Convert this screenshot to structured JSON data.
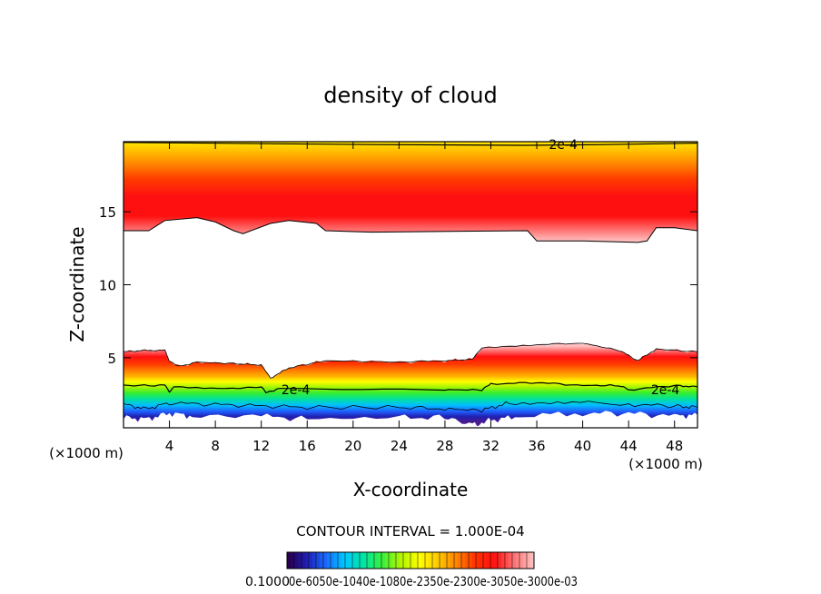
{
  "chart_data": {
    "type": "heatmap",
    "title": "density of cloud",
    "xlabel": "X-coordinate",
    "ylabel": "Z-coordinate",
    "x_unit_label": "(×1000 m)",
    "xlim": [
      0,
      50
    ],
    "ylim": [
      0.2,
      19.8
    ],
    "x_ticks": [
      "4",
      "8",
      "12",
      "16",
      "20",
      "24",
      "28",
      "32",
      "36",
      "40",
      "44",
      "48"
    ],
    "y_ticks": [
      "5",
      "10",
      "15"
    ],
    "contour_labels": [
      {
        "text": "2e-4",
        "x": 38.3,
        "z": 19.6
      },
      {
        "text": "2e-4",
        "x": 15.0,
        "z": 2.8
      },
      {
        "text": "2e-4",
        "x": 47.2,
        "z": 2.8
      }
    ],
    "upper_layer": {
      "base_z": [
        [
          0,
          13.7
        ],
        [
          2.2,
          13.7
        ],
        [
          3.6,
          14.4
        ],
        [
          6.4,
          14.6
        ],
        [
          8.0,
          14.3
        ],
        [
          9.6,
          13.7
        ],
        [
          10.4,
          13.5
        ],
        [
          12.8,
          14.2
        ],
        [
          14.4,
          14.4
        ],
        [
          16.8,
          14.2
        ],
        [
          17.6,
          13.7
        ],
        [
          21.6,
          13.6
        ],
        [
          35.2,
          13.7
        ],
        [
          36.0,
          13.0
        ],
        [
          40.0,
          13.0
        ],
        [
          44.8,
          12.9
        ],
        [
          45.6,
          13.0
        ],
        [
          46.4,
          13.9
        ],
        [
          48.0,
          13.9
        ],
        [
          50,
          13.7
        ]
      ],
      "top_z": 19.8,
      "peak_z": 16.0
    },
    "lower_layer": {
      "top_z": [
        [
          0,
          5.4
        ],
        [
          1.6,
          5.5
        ],
        [
          3.6,
          5.5
        ],
        [
          4.0,
          4.8
        ],
        [
          4.8,
          4.4
        ],
        [
          6.4,
          4.7
        ],
        [
          9.6,
          4.6
        ],
        [
          12.0,
          4.5
        ],
        [
          12.8,
          3.6
        ],
        [
          14.4,
          4.3
        ],
        [
          17.6,
          4.8
        ],
        [
          24.0,
          4.7
        ],
        [
          28.0,
          4.8
        ],
        [
          30.4,
          4.9
        ],
        [
          31.2,
          5.7
        ],
        [
          36.0,
          5.9
        ],
        [
          40.0,
          6.0
        ],
        [
          43.2,
          5.5
        ],
        [
          44.8,
          4.8
        ],
        [
          46.4,
          5.6
        ],
        [
          50,
          5.4
        ]
      ],
      "contour_2e4_z": [
        [
          0,
          3.1
        ],
        [
          3.6,
          3.1
        ],
        [
          4.0,
          2.7
        ],
        [
          4.4,
          3.0
        ],
        [
          9.6,
          2.9
        ],
        [
          12.0,
          3.0
        ],
        [
          12.4,
          2.6
        ],
        [
          13.6,
          2.9
        ],
        [
          28.0,
          2.8
        ],
        [
          31.2,
          2.8
        ],
        [
          32.0,
          3.2
        ],
        [
          36.0,
          3.3
        ],
        [
          40.0,
          3.1
        ],
        [
          43.2,
          3.1
        ],
        [
          44.0,
          2.8
        ],
        [
          48.0,
          3.1
        ],
        [
          50,
          3.0
        ]
      ],
      "contour_low_z": [
        [
          0,
          1.8
        ],
        [
          2.0,
          1.5
        ],
        [
          4.0,
          1.9
        ],
        [
          8.0,
          1.8
        ],
        [
          12.0,
          1.7
        ],
        [
          16.0,
          1.6
        ],
        [
          24.0,
          1.6
        ],
        [
          28.0,
          1.5
        ],
        [
          31.2,
          1.4
        ],
        [
          33.6,
          1.9
        ],
        [
          38.4,
          2.0
        ],
        [
          44.0,
          1.8
        ],
        [
          48.0,
          1.7
        ],
        [
          50,
          1.6
        ]
      ],
      "base_z": [
        [
          0,
          0.9
        ],
        [
          2.0,
          0.8
        ],
        [
          4.0,
          1.2
        ],
        [
          6.0,
          1.0
        ],
        [
          12.0,
          1.0
        ],
        [
          16.0,
          0.8
        ],
        [
          24.0,
          0.9
        ],
        [
          28.0,
          0.9
        ],
        [
          30.4,
          0.4
        ],
        [
          32.0,
          0.7
        ],
        [
          34.4,
          1.0
        ],
        [
          40.0,
          1.2
        ],
        [
          44.0,
          1.2
        ],
        [
          48.0,
          1.0
        ],
        [
          50,
          1.1
        ]
      ]
    },
    "contour_interval_text": "CONTOUR INTERVAL = 1.000E-04",
    "colorbar_min_label": "0.1000",
    "colorbar_overlap_labels": "0e-6050e-1040e-1080e-2350e-2300e-3050e-3000e-03",
    "colorbar_palette": [
      "#2a0050",
      "#1f1fb8",
      "#1a6cff",
      "#00c8ff",
      "#00e6a0",
      "#3cf03c",
      "#b4f500",
      "#ffff00",
      "#ffc800",
      "#ff8000",
      "#ff3000",
      "#ff1010",
      "#ff7070",
      "#ffbcbc"
    ],
    "colors": {
      "ramp": [
        "#ffbfbf",
        "#ff1010",
        "#ff3a00",
        "#ff7a00",
        "#ffb400",
        "#ffe600",
        "#ffff00",
        "#a6f500",
        "#33ee33",
        "#00e0a0",
        "#00bfff",
        "#2060ff",
        "#2020b0",
        "#4a1a90"
      ]
    }
  }
}
